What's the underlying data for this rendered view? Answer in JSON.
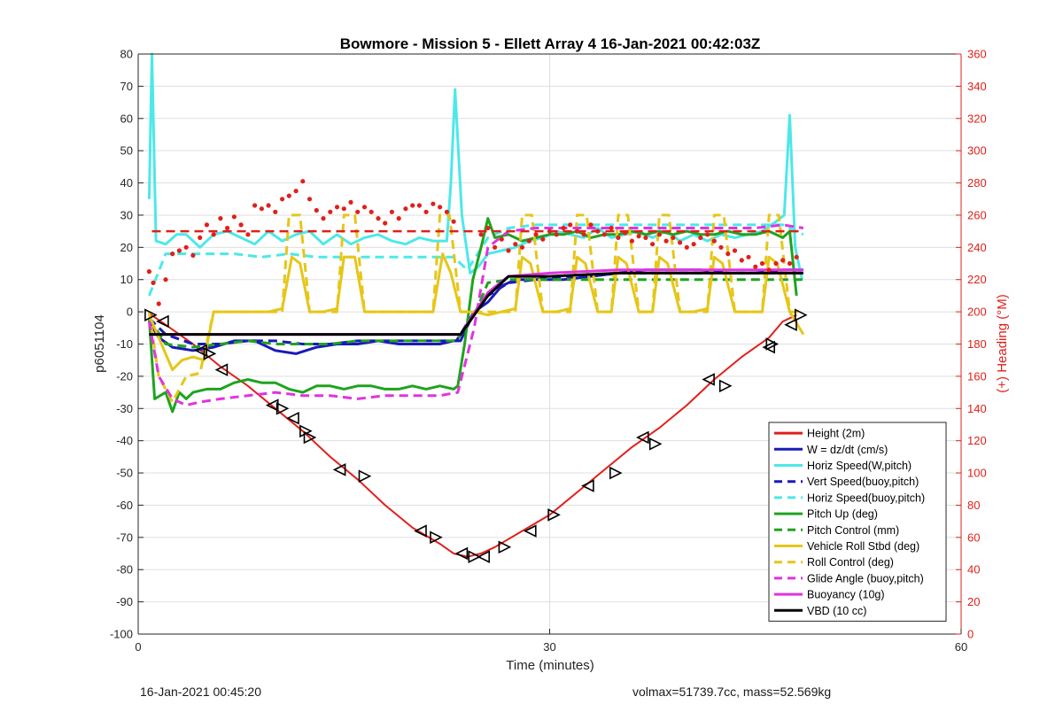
{
  "footer": {
    "timestamp": "16-Jan-2021 00:45:20",
    "summary": "volmax=51739.7cc, mass=52.569kg"
  },
  "chart_data": {
    "type": "line",
    "title": "Bowmore - Mission 5 - Ellett Array 4 16-Jan-2021 00:42:03Z",
    "xlabel": "Time (minutes)",
    "ylabel": "p6051104",
    "y2label": "(+) Heading (°M)",
    "xlim": [
      0,
      60
    ],
    "ylim": [
      -100,
      80
    ],
    "y2lim": [
      0,
      360
    ],
    "xticks": [
      0,
      30,
      60
    ],
    "yticks": [
      -100,
      -90,
      -80,
      -70,
      -60,
      -50,
      -40,
      -30,
      -20,
      -10,
      0,
      10,
      20,
      30,
      40,
      50,
      60,
      70,
      80
    ],
    "y2ticks": [
      0,
      20,
      40,
      60,
      80,
      100,
      120,
      140,
      160,
      180,
      200,
      220,
      240,
      260,
      280,
      300,
      320,
      340,
      360
    ],
    "grid": true,
    "legend_position": "bottom-right",
    "colors": {
      "red": "#e0201b",
      "blue": "#1a1ab8",
      "cyan": "#4de8e8",
      "green": "#1fa31f",
      "yellow": "#e6c619",
      "magenta": "#e033e0",
      "black": "#000000",
      "axis_right": "#e0201b"
    },
    "series": [
      {
        "name": "Height (2m)",
        "color": "red",
        "dash": false,
        "x": [
          0.8,
          2,
          4,
          6,
          8,
          10,
          12,
          14,
          16,
          18,
          20,
          22,
          23,
          24,
          25,
          26,
          28,
          30,
          32,
          34,
          36,
          38,
          40,
          42,
          44,
          46,
          47,
          48
        ],
        "y": [
          -0.5,
          -4,
          -10,
          -17,
          -23,
          -30,
          -37,
          -45,
          -52,
          -60,
          -67,
          -72,
          -75,
          -76,
          -75,
          -73,
          -68,
          -63,
          -56,
          -49,
          -42,
          -36,
          -29,
          -21,
          -14,
          -8,
          -3,
          -1
        ]
      },
      {
        "name": "W = dz/dt (cm/s)",
        "color": "blue",
        "dash": false,
        "x": [
          0.8,
          1.5,
          2.5,
          4,
          5.5,
          7,
          8.5,
          10,
          11.5,
          13,
          14.5,
          16,
          17.5,
          19,
          20.5,
          22,
          23,
          23.5,
          24.5,
          25.5,
          26.5,
          27.5,
          29,
          31,
          33,
          35,
          37,
          39,
          41,
          43,
          45,
          47,
          48.5
        ],
        "y": [
          -3,
          -8,
          -11,
          -12,
          -11,
          -9,
          -9,
          -12,
          -13,
          -11,
          -10,
          -10,
          -9,
          -10,
          -10,
          -10,
          -9,
          -9,
          0,
          3,
          8,
          10,
          10,
          10,
          11,
          12,
          13,
          13,
          13,
          12,
          12,
          13,
          13
        ]
      },
      {
        "name": "Horiz Speed(W,pitch)",
        "color": "cyan",
        "dash": false,
        "x": [
          0.8,
          1.0,
          1.3,
          2,
          2.8,
          3.5,
          4.5,
          5.5,
          6.5,
          7.5,
          8.5,
          9.5,
          10.5,
          11.5,
          12.5,
          13.5,
          14.5,
          15.5,
          16.5,
          17.5,
          18.5,
          19.5,
          20.5,
          21.5,
          22.5,
          22.8,
          23.1,
          23.6,
          24.2,
          24.8,
          25.5,
          26.5,
          27.5,
          28.5,
          29.5,
          30.5,
          31.5,
          32.5,
          33.5,
          34.5,
          35.5,
          36.5,
          37.5,
          38.5,
          39.5,
          40.5,
          41.5,
          42.5,
          43.5,
          44.5,
          45.5,
          46.5,
          47.1,
          47.5,
          47.9,
          48.4
        ],
        "y": [
          35,
          80,
          22,
          21,
          24,
          24,
          20,
          24,
          25,
          23,
          21,
          25,
          22,
          24,
          25,
          21,
          24,
          21,
          23,
          24,
          22,
          21,
          23,
          22,
          22,
          40,
          69,
          30,
          12,
          14,
          18,
          19,
          20,
          22,
          23,
          25,
          24,
          23,
          26,
          23,
          24,
          25,
          23,
          25,
          22,
          24,
          22,
          24,
          23,
          24,
          25,
          28,
          30,
          61,
          20,
          10
        ]
      },
      {
        "name": "Vert Speed(buoy,pitch)",
        "color": "blue",
        "dash": true,
        "x": [
          0.8,
          2,
          4,
          6,
          8,
          10,
          12,
          14,
          16,
          18,
          20,
          22,
          23.2,
          24.5,
          25.5,
          27,
          29,
          31,
          33,
          35,
          37,
          39,
          41,
          43,
          45,
          47,
          48.5
        ],
        "y": [
          -2,
          -7,
          -10,
          -10,
          -9,
          -9,
          -10,
          -10,
          -9,
          -9,
          -9,
          -9,
          -9,
          0,
          5,
          9,
          10,
          11,
          11,
          12,
          12,
          12,
          12,
          12,
          12,
          12,
          12
        ]
      },
      {
        "name": "Horiz Speed(buoy,pitch)",
        "color": "cyan",
        "dash": true,
        "x": [
          0.8,
          2,
          3,
          5,
          7,
          9,
          11,
          13,
          15,
          17,
          19,
          21,
          23,
          24,
          25.5,
          27,
          29,
          31,
          33,
          35,
          37,
          39,
          41,
          43,
          45,
          47,
          48.5
        ],
        "y": [
          5,
          18,
          18,
          18,
          18,
          17,
          18,
          17,
          17,
          17,
          17,
          17,
          17,
          13,
          23,
          26,
          27,
          27,
          27,
          27,
          27,
          27,
          27,
          27,
          27,
          27,
          24
        ]
      },
      {
        "name": "Pitch Up (deg)",
        "color": "green",
        "dash": false,
        "x": [
          0.8,
          1.2,
          2,
          2.5,
          3,
          3.5,
          4,
          5,
          6,
          7,
          8,
          9,
          10,
          11,
          12,
          13,
          14,
          15,
          16,
          17,
          18,
          19,
          20,
          21,
          22,
          23,
          23.3,
          23.8,
          24.4,
          25,
          25.5,
          26,
          27,
          28,
          29,
          30,
          31,
          32,
          33,
          34,
          35,
          36,
          37,
          38,
          39,
          40,
          41,
          42,
          43,
          44,
          45,
          46,
          47,
          47.5,
          48
        ],
        "y": [
          -2,
          -27,
          -25,
          -31,
          -25,
          -27,
          -25,
          -24,
          -24,
          -22,
          -21,
          -22,
          -22,
          -24,
          -25,
          -23,
          -23,
          -24,
          -23,
          -23,
          -24,
          -24,
          -23,
          -24,
          -23,
          -24,
          -23,
          -10,
          10,
          20,
          29,
          23,
          24,
          22,
          23,
          24,
          24,
          25,
          23,
          24,
          24,
          25,
          24,
          25,
          24,
          25,
          24,
          24,
          25,
          24,
          24,
          25,
          23,
          25,
          5
        ]
      },
      {
        "name": "Pitch Control (mm)",
        "color": "green",
        "dash": true,
        "x": [
          0.8,
          2,
          4,
          6,
          8,
          10,
          12,
          14,
          16,
          18,
          20,
          22,
          23.2,
          24.5,
          25.5,
          27,
          29,
          31,
          33,
          35,
          37,
          39,
          41,
          43,
          45,
          47,
          48.5
        ],
        "y": [
          -2,
          -10,
          -11,
          -10,
          -9,
          -10,
          -10,
          -10,
          -9,
          -9,
          -9,
          -9,
          -9,
          -1,
          9,
          10,
          10,
          10,
          10,
          10,
          10,
          10,
          10,
          10,
          10,
          10,
          10
        ]
      },
      {
        "name": "Vehicle Roll Stbd (deg)",
        "color": "yellow",
        "dash": false,
        "x": [
          0.8,
          1.5,
          2.5,
          3.2,
          4,
          4.8,
          5.5,
          6.5,
          8,
          9.5,
          10.5,
          11.2,
          11.8,
          12.5,
          13.5,
          14.5,
          15,
          15.8,
          16.5,
          17.5,
          19,
          20.5,
          21.5,
          22.2,
          22.8,
          23.5,
          24.5,
          25.5,
          26.5,
          27.5,
          28,
          28.6,
          29.5,
          30.5,
          31.5,
          32,
          32.6,
          33.5,
          34.5,
          35,
          35.6,
          36.5,
          37.5,
          38,
          38.6,
          39.5,
          40.5,
          41.5,
          42,
          42.6,
          43.5,
          44.5,
          45.5,
          46,
          46.6,
          47.5,
          48.5
        ],
        "y": [
          -1,
          -8,
          -18,
          -15,
          -14,
          -15,
          0,
          0,
          0,
          0,
          1,
          17,
          15,
          0,
          0,
          1,
          17,
          17,
          0,
          0,
          0,
          0,
          0,
          18,
          12,
          0,
          0,
          -1,
          0,
          1,
          17,
          15,
          0,
          0,
          1,
          17,
          15,
          0,
          0,
          17,
          15,
          0,
          0,
          17,
          15,
          0,
          0,
          1,
          17,
          15,
          0,
          0,
          0,
          17,
          15,
          0,
          -7
        ]
      },
      {
        "name": "Roll Control (deg)",
        "color": "yellow",
        "dash": true,
        "x": [
          0.8,
          1.5,
          2.5,
          3.5,
          4.5,
          5.5,
          8,
          10.5,
          11,
          11.8,
          12.5,
          14.5,
          15,
          15.8,
          16.5,
          20.5,
          21.5,
          22,
          22.7,
          23.5,
          25.5,
          27.5,
          28,
          28.7,
          29.5,
          31.5,
          32,
          32.7,
          33.5,
          34.5,
          35,
          35.7,
          36.5,
          37.5,
          38,
          38.7,
          39.5,
          41.5,
          42,
          42.7,
          43.5,
          45.5,
          46,
          46.7,
          47.5,
          48.5
        ],
        "y": [
          0,
          -20,
          -28,
          -20,
          -19,
          0,
          0,
          0,
          30,
          30,
          0,
          0,
          30,
          30,
          0,
          0,
          0,
          30,
          30,
          0,
          0,
          0,
          30,
          30,
          0,
          0,
          30,
          30,
          0,
          0,
          30,
          30,
          0,
          0,
          30,
          30,
          0,
          0,
          30,
          30,
          0,
          0,
          30,
          30,
          0,
          0
        ]
      },
      {
        "name": "Glide Angle (buoy,pitch)",
        "color": "magenta",
        "dash": true,
        "x": [
          0.8,
          1.5,
          2.5,
          3.5,
          4.5,
          6,
          8,
          10,
          12,
          14,
          16,
          18,
          20,
          22,
          23.3,
          24.5,
          25.5,
          27,
          29,
          31,
          33,
          35,
          37,
          39,
          41,
          43,
          45,
          47,
          48.5
        ],
        "y": [
          -3,
          -20,
          -27,
          -29,
          -28,
          -27,
          -26,
          -25,
          -26,
          -26,
          -27,
          -26,
          -26,
          -26,
          -25,
          -5,
          20,
          25,
          26,
          26,
          26,
          26,
          26,
          26,
          26,
          26,
          26,
          27,
          26
        ]
      },
      {
        "name": "Buoyancy (10g)",
        "color": "magenta",
        "dash": false,
        "x": [
          0.8,
          23.5,
          25.5,
          27,
          30,
          35,
          40,
          45,
          48.5
        ],
        "y": [
          -7,
          -7,
          6,
          11,
          12,
          13,
          13,
          13,
          13
        ]
      },
      {
        "name": "VBD (10 cc)",
        "color": "black",
        "dash": false,
        "x": [
          0.8,
          23.5,
          25.5,
          27,
          30,
          35,
          40,
          45,
          48.5
        ],
        "y": [
          -7,
          -7,
          5,
          11,
          11,
          12,
          12,
          12,
          12
        ]
      },
      {
        "name": "Heading target",
        "color": "red",
        "dash": true,
        "legend": false,
        "x": [
          1,
          48.5
        ],
        "y": [
          25,
          25
        ]
      }
    ],
    "heading_points": {
      "color": "red",
      "axis": "right",
      "x": [
        0.8,
        1.1,
        1.5,
        2.0,
        2.5,
        3.0,
        3.5,
        4.0,
        4.5,
        5.0,
        5.5,
        6.0,
        6.5,
        7.0,
        7.5,
        8.0,
        8.5,
        9.0,
        9.5,
        10.0,
        10.5,
        11.0,
        11.5,
        12.0,
        12.5,
        13.0,
        13.5,
        14.0,
        14.5,
        15.0,
        15.5,
        16.0,
        16.5,
        17.0,
        17.5,
        18.0,
        18.5,
        19.0,
        19.5,
        20.0,
        20.5,
        21.0,
        21.5,
        22.0,
        22.5,
        23.0,
        25.0,
        25.5,
        26.0,
        26.5,
        27.0,
        27.5,
        28.0,
        28.5,
        29.0,
        29.5,
        30.0,
        30.5,
        31.0,
        31.5,
        32.0,
        32.5,
        33.0,
        33.5,
        34.0,
        34.5,
        35.0,
        35.5,
        36.0,
        36.5,
        37.0,
        37.5,
        38.0,
        38.5,
        39.0,
        39.5,
        40.0,
        40.5,
        41.0,
        41.5,
        42.0,
        42.5,
        43.0,
        43.5,
        44.0,
        44.5,
        45.0,
        45.5,
        46.0,
        46.5,
        47.0,
        47.5,
        48.0
      ],
      "y": [
        225,
        218,
        205,
        220,
        236,
        238,
        240,
        235,
        246,
        254,
        248,
        258,
        252,
        259,
        254,
        248,
        266,
        264,
        266,
        262,
        270,
        272,
        275,
        281,
        270,
        263,
        258,
        262,
        265,
        264,
        268,
        262,
        265,
        262,
        258,
        255,
        262,
        258,
        264,
        266,
        266,
        262,
        267,
        265,
        262,
        256,
        248,
        252,
        240,
        245,
        238,
        242,
        240,
        244,
        248,
        245,
        250,
        248,
        252,
        254,
        250,
        248,
        254,
        250,
        248,
        252,
        246,
        249,
        244,
        247,
        246,
        242,
        248,
        244,
        246,
        243,
        240,
        242,
        246,
        248,
        244,
        240,
        236,
        238,
        232,
        234,
        228,
        230,
        226,
        230,
        232,
        230,
        234
      ]
    },
    "markers": {
      "right": [
        [
          0.9,
          -1
        ],
        [
          5.2,
          -13
        ],
        [
          10.5,
          -30
        ],
        [
          12.2,
          -37
        ],
        [
          12.5,
          -39
        ],
        [
          16.5,
          -51
        ],
        [
          21.7,
          -70
        ],
        [
          24.5,
          -76
        ],
        [
          26.7,
          -73
        ],
        [
          30.3,
          -63
        ],
        [
          34.8,
          -50
        ],
        [
          37.7,
          -41
        ],
        [
          42.8,
          -23
        ],
        [
          46.2,
          -10
        ],
        [
          48.3,
          -1
        ]
      ],
      "left": [
        [
          1.8,
          -3
        ],
        [
          4.6,
          -12
        ],
        [
          6.1,
          -18
        ],
        [
          9.8,
          -29
        ],
        [
          11.3,
          -33
        ],
        [
          14.7,
          -49
        ],
        [
          20.6,
          -68
        ],
        [
          23.6,
          -75
        ],
        [
          25.2,
          -76
        ],
        [
          28.6,
          -68
        ],
        [
          32.8,
          -54
        ],
        [
          36.8,
          -39
        ],
        [
          41.6,
          -21
        ],
        [
          46.0,
          -11
        ],
        [
          47.6,
          -4
        ]
      ]
    }
  }
}
